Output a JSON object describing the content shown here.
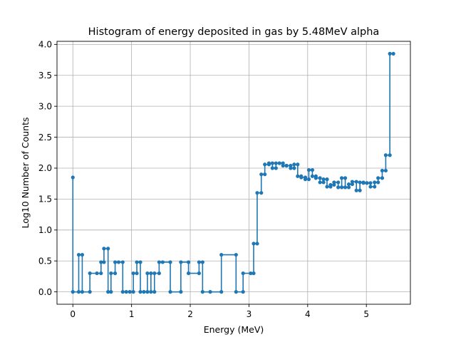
{
  "chart_data": {
    "type": "line",
    "title": "Histogram of energy deposited in gas by 5.48MeV alpha",
    "xlabel": "Energy (MeV)",
    "ylabel": "Log10 Number of Counts",
    "xlim": [
      -0.27,
      5.75
    ],
    "ylim": [
      -0.2,
      4.05
    ],
    "x_ticks": [
      0,
      1,
      2,
      3,
      4,
      5
    ],
    "y_ticks": [
      0.0,
      0.5,
      1.0,
      1.5,
      2.0,
      2.5,
      3.0,
      3.5,
      4.0
    ],
    "x_tick_labels": [
      "0",
      "1",
      "2",
      "3",
      "4",
      "5"
    ],
    "y_tick_labels": [
      "0.0",
      "0.5",
      "1.0",
      "1.5",
      "2.0",
      "2.5",
      "3.0",
      "3.5",
      "4.0"
    ],
    "grid": true,
    "colors": {
      "series": "#1f77b4"
    },
    "series": [
      {
        "style": "step-post with markers",
        "points": [
          [
            0.0,
            1.85
          ],
          [
            0.0,
            0.0
          ],
          [
            0.1,
            0.0
          ],
          [
            0.1,
            0.6
          ],
          [
            0.16,
            0.6
          ],
          [
            0.16,
            0.0
          ],
          [
            0.29,
            0.0
          ],
          [
            0.29,
            0.3
          ],
          [
            0.41,
            0.3
          ],
          [
            0.48,
            0.3
          ],
          [
            0.48,
            0.48
          ],
          [
            0.53,
            0.48
          ],
          [
            0.53,
            0.7
          ],
          [
            0.6,
            0.7
          ],
          [
            0.6,
            0.0
          ],
          [
            0.65,
            0.0
          ],
          [
            0.65,
            0.3
          ],
          [
            0.72,
            0.3
          ],
          [
            0.72,
            0.48
          ],
          [
            0.78,
            0.48
          ],
          [
            0.85,
            0.48
          ],
          [
            0.85,
            0.0
          ],
          [
            0.91,
            0.0
          ],
          [
            0.97,
            0.0
          ],
          [
            1.03,
            0.0
          ],
          [
            1.03,
            0.3
          ],
          [
            1.09,
            0.3
          ],
          [
            1.09,
            0.48
          ],
          [
            1.15,
            0.48
          ],
          [
            1.15,
            0.0
          ],
          [
            1.21,
            0.0
          ],
          [
            1.27,
            0.0
          ],
          [
            1.27,
            0.3
          ],
          [
            1.33,
            0.3
          ],
          [
            1.33,
            0.0
          ],
          [
            1.39,
            0.0
          ],
          [
            1.39,
            0.3
          ],
          [
            1.47,
            0.3
          ],
          [
            1.47,
            0.48
          ],
          [
            1.53,
            0.48
          ],
          [
            1.66,
            0.48
          ],
          [
            1.66,
            0.0
          ],
          [
            1.84,
            0.0
          ],
          [
            1.84,
            0.48
          ],
          [
            1.97,
            0.48
          ],
          [
            1.97,
            0.3
          ],
          [
            2.15,
            0.3
          ],
          [
            2.15,
            0.48
          ],
          [
            2.21,
            0.48
          ],
          [
            2.21,
            0.0
          ],
          [
            2.34,
            0.0
          ],
          [
            2.53,
            0.0
          ],
          [
            2.53,
            0.6
          ],
          [
            2.78,
            0.6
          ],
          [
            2.78,
            0.0
          ],
          [
            2.9,
            0.0
          ],
          [
            2.9,
            0.3
          ],
          [
            3.03,
            0.3
          ],
          [
            3.08,
            0.3
          ],
          [
            3.08,
            0.78
          ],
          [
            3.14,
            0.78
          ],
          [
            3.14,
            1.6
          ],
          [
            3.21,
            1.6
          ],
          [
            3.21,
            1.9
          ],
          [
            3.27,
            1.9
          ],
          [
            3.27,
            2.06
          ],
          [
            3.34,
            2.06
          ],
          [
            3.34,
            2.08
          ],
          [
            3.4,
            2.08
          ],
          [
            3.4,
            2.0
          ],
          [
            3.46,
            2.0
          ],
          [
            3.46,
            2.08
          ],
          [
            3.52,
            2.08
          ],
          [
            3.52,
            2.08
          ],
          [
            3.58,
            2.08
          ],
          [
            3.58,
            2.04
          ],
          [
            3.64,
            2.04
          ],
          [
            3.64,
            2.04
          ],
          [
            3.71,
            2.04
          ],
          [
            3.71,
            2.0
          ],
          [
            3.77,
            2.0
          ],
          [
            3.77,
            2.06
          ],
          [
            3.83,
            2.06
          ],
          [
            3.83,
            1.87
          ],
          [
            3.89,
            1.87
          ],
          [
            3.89,
            1.85
          ],
          [
            3.96,
            1.85
          ],
          [
            3.96,
            1.82
          ],
          [
            4.02,
            1.82
          ],
          [
            4.02,
            1.97
          ],
          [
            4.08,
            1.97
          ],
          [
            4.08,
            1.87
          ],
          [
            4.14,
            1.87
          ],
          [
            4.14,
            1.84
          ],
          [
            4.21,
            1.84
          ],
          [
            4.21,
            1.77
          ],
          [
            4.27,
            1.77
          ],
          [
            4.27,
            1.82
          ],
          [
            4.33,
            1.82
          ],
          [
            4.33,
            1.7
          ],
          [
            4.39,
            1.7
          ],
          [
            4.39,
            1.73
          ],
          [
            4.45,
            1.73
          ],
          [
            4.45,
            1.77
          ],
          [
            4.52,
            1.77
          ],
          [
            4.52,
            1.69
          ],
          [
            4.58,
            1.69
          ],
          [
            4.58,
            1.84
          ],
          [
            4.64,
            1.84
          ],
          [
            4.64,
            1.69
          ],
          [
            4.7,
            1.69
          ],
          [
            4.7,
            1.74
          ],
          [
            4.76,
            1.74
          ],
          [
            4.76,
            1.78
          ],
          [
            4.83,
            1.78
          ],
          [
            4.83,
            1.64
          ],
          [
            4.89,
            1.64
          ],
          [
            4.89,
            1.77
          ],
          [
            4.95,
            1.77
          ],
          [
            4.95,
            1.76
          ],
          [
            5.01,
            1.76
          ],
          [
            5.01,
            1.76
          ],
          [
            5.07,
            1.76
          ],
          [
            5.07,
            1.7
          ],
          [
            5.14,
            1.7
          ],
          [
            5.14,
            1.77
          ],
          [
            5.2,
            1.77
          ],
          [
            5.2,
            1.84
          ],
          [
            5.27,
            1.84
          ],
          [
            5.27,
            1.96
          ],
          [
            5.33,
            1.96
          ],
          [
            5.33,
            2.21
          ],
          [
            5.4,
            2.21
          ],
          [
            5.4,
            3.85
          ],
          [
            5.46,
            3.85
          ]
        ]
      }
    ]
  }
}
